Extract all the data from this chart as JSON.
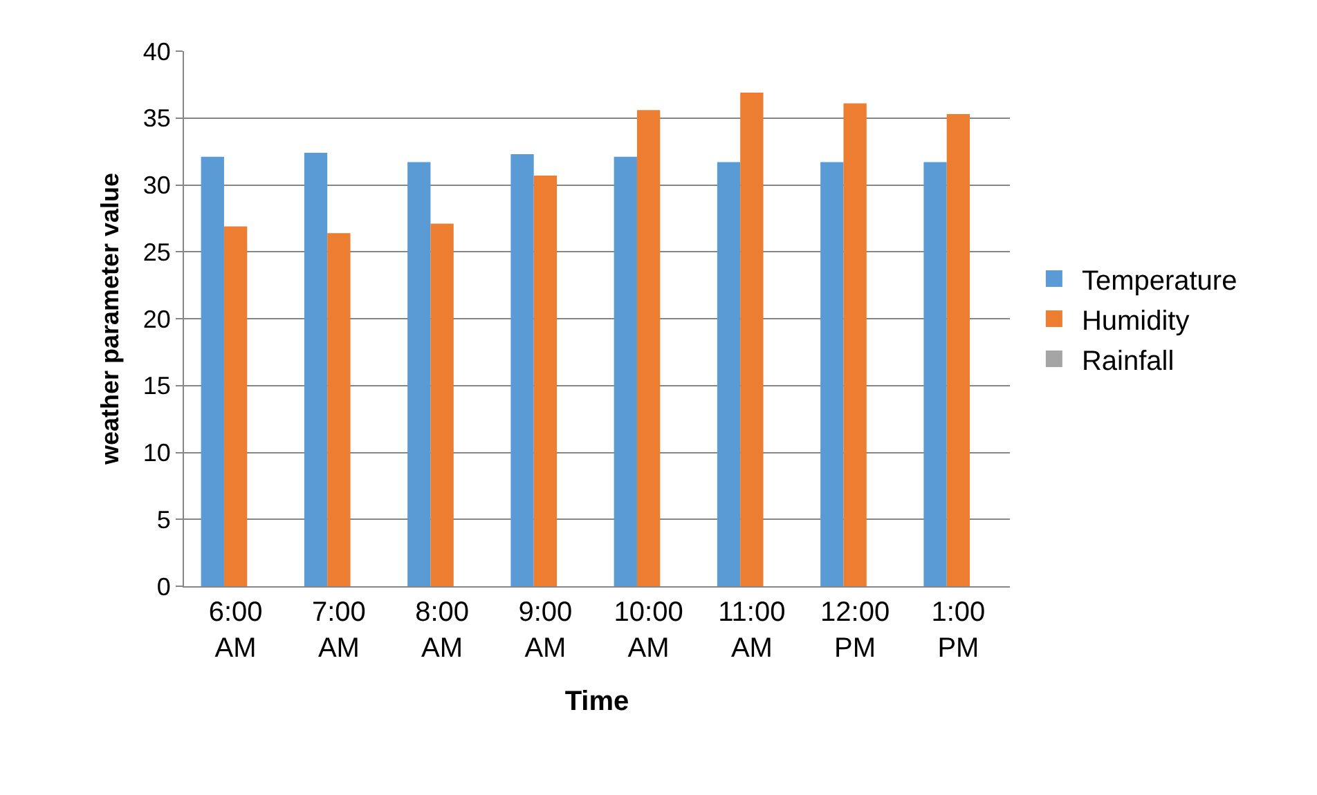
{
  "chart_data": {
    "type": "bar",
    "xlabel": "Time",
    "ylabel": "weather parameter value",
    "categories": [
      "6:00 AM",
      "7:00 AM",
      "8:00 AM",
      "9:00 AM",
      "10:00 AM",
      "11:00 AM",
      "12:00 PM",
      "1:00 PM"
    ],
    "series": [
      {
        "name": "Temperature",
        "color": "#5b9bd5",
        "values": [
          32.1,
          32.4,
          31.7,
          32.3,
          32.1,
          31.7,
          31.7,
          31.7
        ]
      },
      {
        "name": "Humidity",
        "color": "#ed7d31",
        "values": [
          26.9,
          26.4,
          27.1,
          30.7,
          35.6,
          36.9,
          36.1,
          35.3
        ]
      },
      {
        "name": "Rainfall",
        "color": "#a5a5a5",
        "values": [
          0,
          0,
          0,
          0,
          0,
          0,
          0,
          0
        ]
      }
    ],
    "ylim": [
      0,
      40
    ],
    "yticks": [
      0,
      5,
      10,
      15,
      20,
      25,
      30,
      35,
      40
    ],
    "grid": "y",
    "legend": "right"
  }
}
